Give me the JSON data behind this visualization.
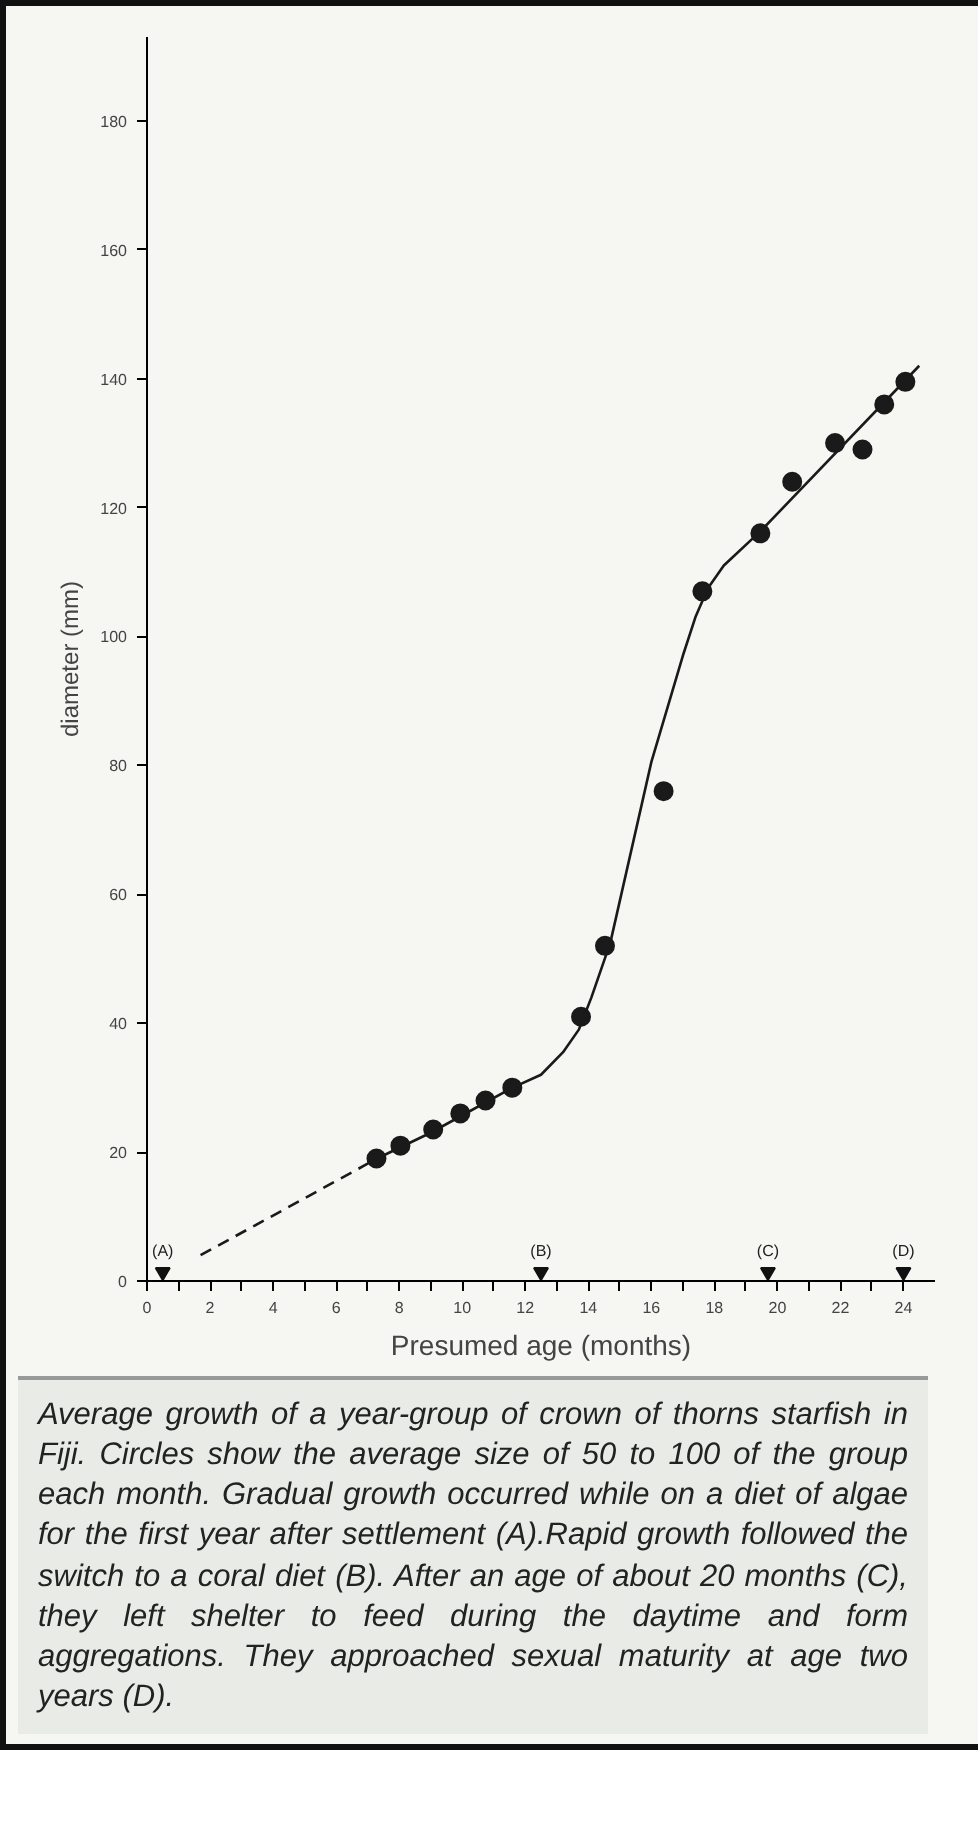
{
  "chart_data": {
    "type": "scatter",
    "xlabel": "Presumed age (months)",
    "ylabel": "diameter (mm)",
    "xlim": [
      0,
      25
    ],
    "ylim": [
      0,
      193
    ],
    "xticks": [
      0,
      {
        "value": 1,
        "label": null
      },
      2,
      {
        "value": 3,
        "label": null
      },
      4,
      {
        "value": 5,
        "label": null
      },
      6,
      {
        "value": 7,
        "label": null
      },
      8,
      {
        "value": 9,
        "label": null
      },
      10,
      {
        "value": 11,
        "label": null
      },
      12,
      {
        "value": 13,
        "label": null
      },
      14,
      {
        "value": 15,
        "label": null
      },
      16,
      {
        "value": 17,
        "label": null
      },
      18,
      {
        "value": 19,
        "label": null
      },
      20,
      {
        "value": 21,
        "label": null
      },
      22,
      {
        "value": 23,
        "label": null
      },
      24
    ],
    "yticks": [
      0,
      20,
      40,
      60,
      80,
      100,
      120,
      140,
      160,
      180
    ],
    "grid": false,
    "series": [
      {
        "type": "scatter",
        "marker": "circle",
        "color": "#1a1a1a",
        "x": [
          7.28,
          8.04,
          9.08,
          9.94,
          10.74,
          11.59,
          13.77,
          14.53,
          16.39,
          17.62,
          19.46,
          20.47,
          21.83,
          22.7,
          23.39,
          24.06
        ],
        "values": [
          19,
          21,
          23.5,
          26,
          28,
          30,
          41,
          52,
          76,
          107,
          116,
          124,
          130,
          129,
          136,
          139.5
        ]
      },
      {
        "type": "line",
        "line_style": "dashed",
        "marker": "none",
        "color": "#1a1a1a",
        "x": [
          1.7,
          7.3
        ],
        "values": [
          4,
          19
        ]
      },
      {
        "type": "line",
        "line_style": "solid",
        "marker": "none",
        "color": "#1a1a1a",
        "x": [
          7.3,
          9,
          11.6,
          12.5,
          13.2,
          13.7,
          14.1,
          14.7,
          16,
          17,
          17.4,
          17.8,
          18.3,
          19.5,
          24.5
        ],
        "values": [
          19,
          23,
          30,
          32,
          35.5,
          39,
          44,
          52.5,
          80.5,
          97,
          103,
          107.5,
          111,
          116.5,
          142
        ]
      },
      {
        "marker": "triangle",
        "color": "#111111",
        "x": [
          0.5,
          12.5,
          19.7,
          24
        ],
        "values": [
          1.4,
          1.4,
          1.4,
          1.4
        ]
      }
    ],
    "annotations": [
      {
        "text": "(A)",
        "x": 0.5,
        "y": 1.4
      },
      {
        "text": "(B)",
        "x": 12.5,
        "y": 1.4
      },
      {
        "text": "(C)",
        "x": 19.7,
        "y": 1.4
      },
      {
        "text": "(D)",
        "x": 24,
        "y": 1.4
      },
      "Average growth of a year-group of crown of thorns starfish in Fiji. Circles show the average size of 50 to 100 of the group each month. Gradual growth occurred while on a diet of algae for the first year after settlement (A).Rapid growth followed the switch to a coral diet (B). After an age of about 20 months (C), they left shelter to feed during the daytime and form aggregations. They approached sexual maturity at age two years (D)."
    ]
  }
}
